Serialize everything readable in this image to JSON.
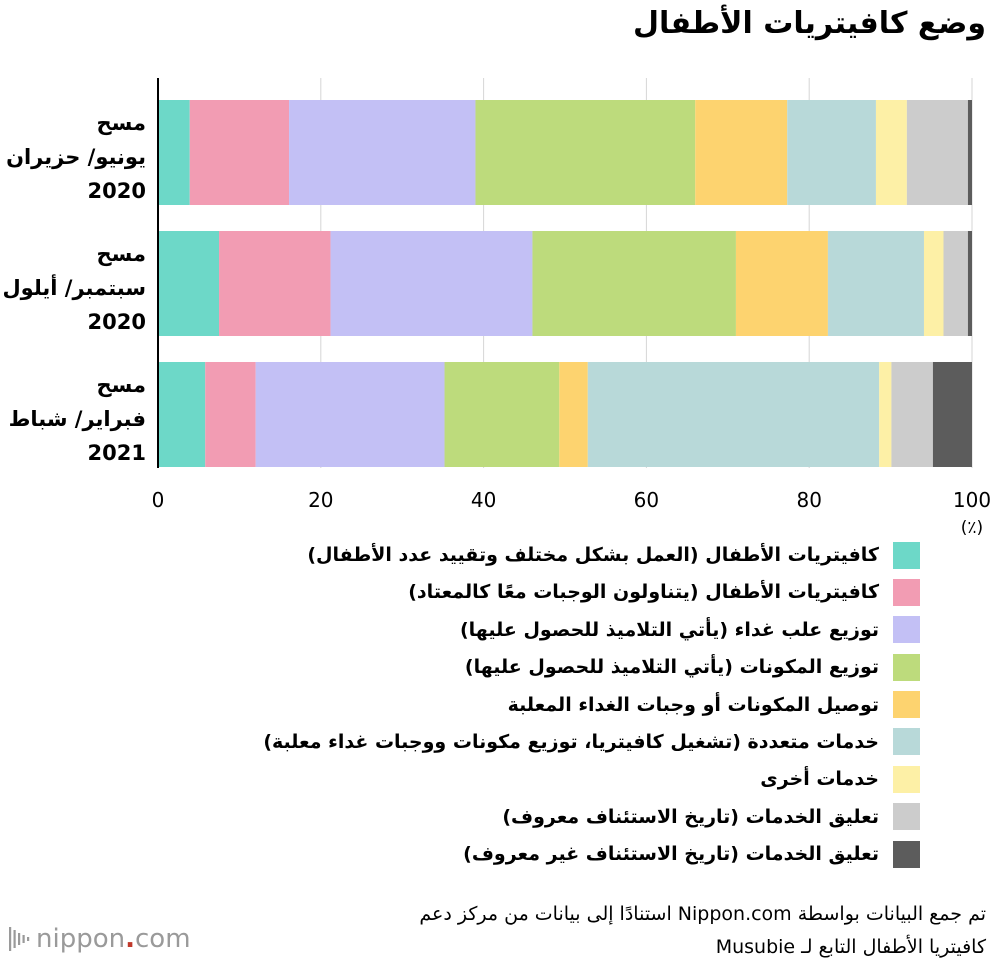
{
  "title": "وضع كافيتريات الأطفال",
  "chart_data": {
    "type": "bar",
    "orientation": "horizontal",
    "stacked": true,
    "title": "وضع كافيتريات الأطفال",
    "categories": [
      [
        "مسح",
        "يونيو/ حزيران",
        "2020"
      ],
      [
        "مسح",
        "سبتمبر/ أيلول",
        "2020"
      ],
      [
        "مسح",
        "فبراير/ شباط",
        "2021"
      ]
    ],
    "xlim": [
      0,
      100
    ],
    "x_ticks": [
      0,
      20,
      40,
      60,
      80,
      100
    ],
    "xunit": "(٪)",
    "grid": true,
    "legend_position": "bottom",
    "series": [
      {
        "name": "كافيتريات الأطفال (العمل بشكل مختلف وتقييد عدد الأطفال)",
        "color": "#6dd8c8",
        "values": [
          3.9,
          7.5,
          5.8
        ]
      },
      {
        "name": "كافيتريات الأطفال (يتناولون الوجبات معًا كالمعتاد)",
        "color": "#f29cb3",
        "values": [
          12.2,
          13.7,
          6.2
        ]
      },
      {
        "name": "توزيع علب غداء (يأتي التلاميذ للحصول عليها)",
        "color": "#c3c0f5",
        "values": [
          22.9,
          24.8,
          23.2
        ]
      },
      {
        "name": "توزيع المكونات (يأتي التلاميذ للحصول عليها)",
        "color": "#bddb7c",
        "values": [
          27.0,
          25.0,
          14.1
        ]
      },
      {
        "name": "توصيل المكونات أو وجبات الغداء المعلبة",
        "color": "#fdd36f",
        "values": [
          11.3,
          11.3,
          3.5
        ]
      },
      {
        "name": "خدمات متعددة (تشغيل كافيتريا، توزيع مكونات ووجبات غداء معلبة)",
        "color": "#b8d9d9",
        "values": [
          10.9,
          11.8,
          35.8
        ]
      },
      {
        "name": "خدمات أخرى",
        "color": "#fdf0a6",
        "values": [
          3.8,
          2.4,
          1.5
        ]
      },
      {
        "name": "تعليق الخدمات (تاريخ الاستئناف معروف)",
        "color": "#cccccc",
        "values": [
          7.5,
          3.0,
          5.1
        ]
      },
      {
        "name": "تعليق الخدمات (تاريخ الاستئناف غير معروف)",
        "color": "#5c5c5c",
        "values": [
          0.5,
          0.5,
          4.8
        ]
      }
    ]
  },
  "source_lines": [
    "تم جمع البيانات بواسطة Nippon.com استنادًا إلى بيانات من مركز دعم",
    "كافيتريا الأطفال التابع لـ Musubie"
  ],
  "logo": {
    "text_main": "nippon",
    "text_dot": ".",
    "text_tld": "com"
  }
}
